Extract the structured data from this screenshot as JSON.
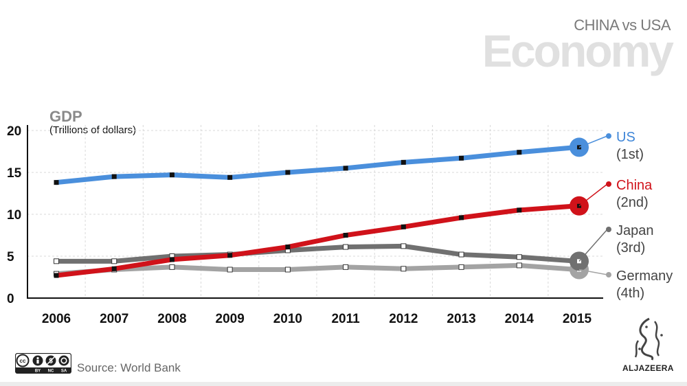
{
  "header": {
    "subtitle": "CHINA vs USA",
    "title": "Economy"
  },
  "chart_data": {
    "type": "line",
    "title": "GDP",
    "ylabel": "(Trillions of dollars)",
    "xlabel": "",
    "ylim": [
      0,
      20
    ],
    "yticks": [
      0,
      5,
      10,
      15,
      20
    ],
    "categories": [
      "2006",
      "2007",
      "2008",
      "2009",
      "2010",
      "2011",
      "2012",
      "2013",
      "2014",
      "2015"
    ],
    "grid": true,
    "series": [
      {
        "name": "US",
        "rank": "(1st)",
        "color": "#4a8fdc",
        "values": [
          13.8,
          14.5,
          14.7,
          14.4,
          15.0,
          15.5,
          16.2,
          16.7,
          17.4,
          18.0
        ]
      },
      {
        "name": "China",
        "rank": "(2nd)",
        "color": "#d0121a",
        "values": [
          2.7,
          3.5,
          4.6,
          5.1,
          6.1,
          7.5,
          8.5,
          9.6,
          10.5,
          11.0
        ]
      },
      {
        "name": "Japan",
        "rank": "(3rd)",
        "color": "#707070",
        "values": [
          4.4,
          4.4,
          5.0,
          5.2,
          5.7,
          6.1,
          6.2,
          5.2,
          4.9,
          4.4
        ]
      },
      {
        "name": "Germany",
        "rank": "(4th)",
        "color": "#a3a3a3",
        "values": [
          2.9,
          3.4,
          3.7,
          3.4,
          3.4,
          3.7,
          3.5,
          3.7,
          3.9,
          3.4
        ]
      }
    ]
  },
  "footer": {
    "source": "Source: World Bank",
    "license_labels": [
      "BY",
      "NC",
      "SA"
    ],
    "brand": "ALJAZEERA"
  }
}
